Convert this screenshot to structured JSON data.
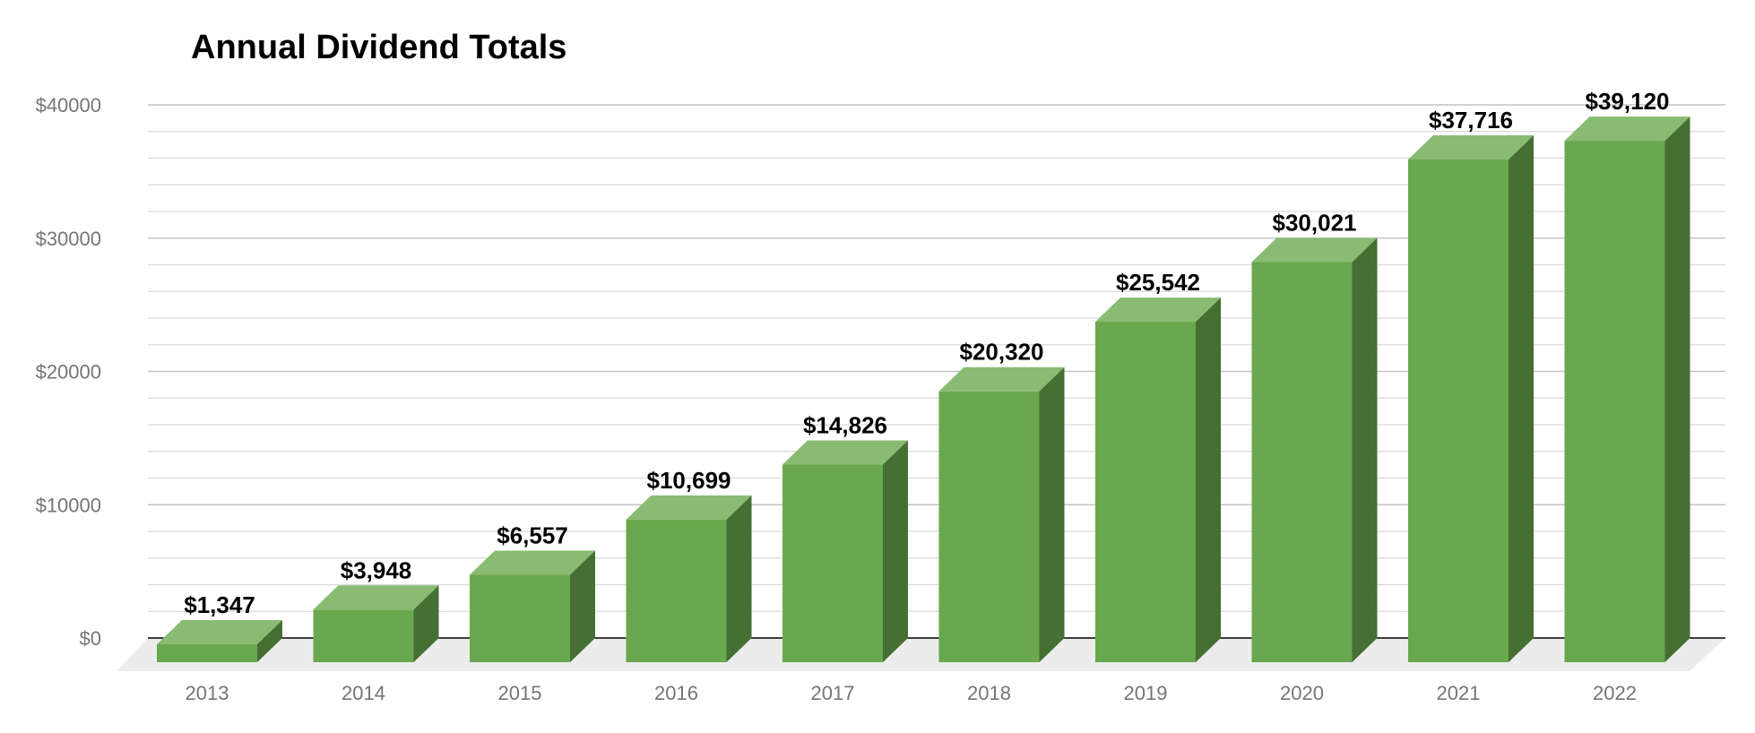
{
  "chart_data": {
    "type": "bar",
    "style": "3d",
    "title": "Annual Dividend Totals",
    "xlabel": "",
    "ylabel": "",
    "categories": [
      "2013",
      "2014",
      "2015",
      "2016",
      "2017",
      "2018",
      "2019",
      "2020",
      "2021",
      "2022"
    ],
    "values": [
      1347,
      3948,
      6557,
      10699,
      14826,
      20320,
      25542,
      30021,
      37716,
      39120
    ],
    "value_labels": [
      "$1,347",
      "$3,948",
      "$6,557",
      "$10,699",
      "$14,826",
      "$20,320",
      "$25,542",
      "$30,021",
      "$37,716",
      "$39,120"
    ],
    "ylim": [
      0,
      40000
    ],
    "y_ticks": [
      0,
      10000,
      20000,
      30000,
      40000
    ],
    "y_tick_labels": [
      "$0",
      "$10000",
      "$20000",
      "$30000",
      "$40000"
    ],
    "grid": true,
    "legend": "none",
    "colors": {
      "bar_front": "#6aa84f",
      "bar_top": "#89bb72",
      "bar_side": "#456f33",
      "floor": "#ececec",
      "gridline": "#d9d9d9",
      "gridline_major": "#c4c4c4",
      "baseline": "#000000"
    }
  }
}
